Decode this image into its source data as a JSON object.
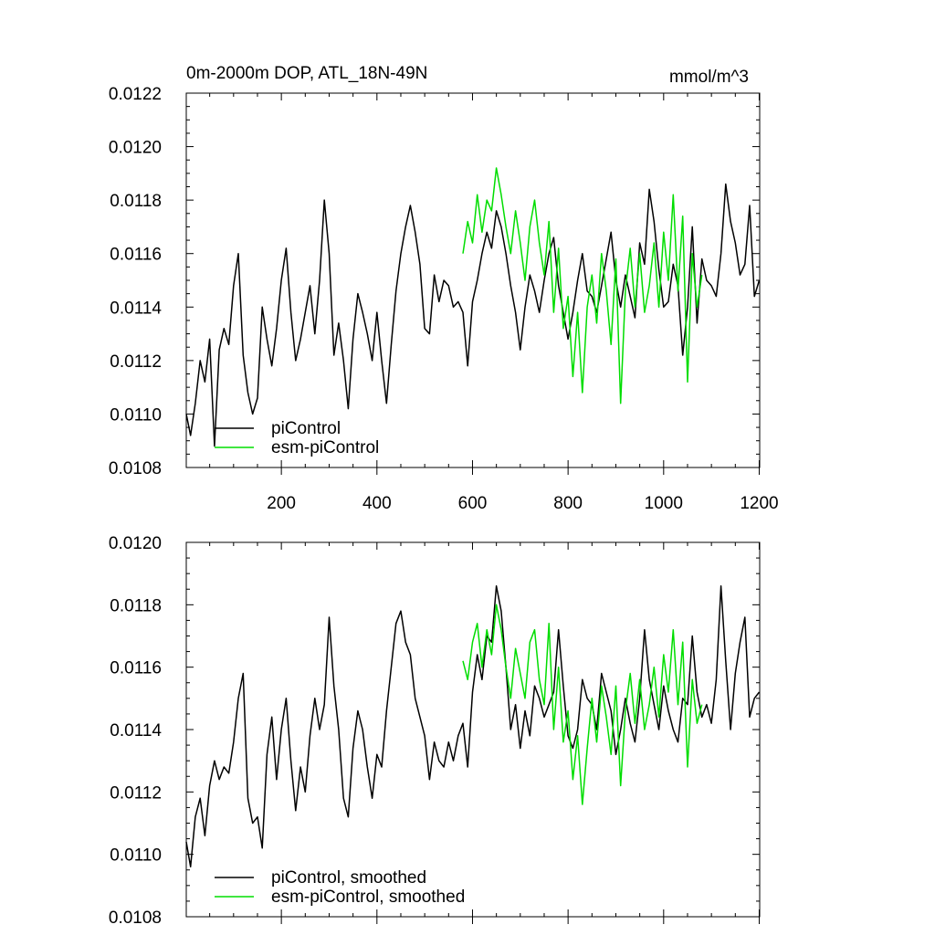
{
  "chart_data": [
    {
      "type": "line",
      "title": "0m-2000m DOP, ATL_18N-49N",
      "units": "mmol/m^3",
      "xlim": [
        1,
        1201
      ],
      "ylim": [
        0.0108,
        0.0122
      ],
      "x_ticks": [
        200,
        400,
        600,
        800,
        1000,
        1200
      ],
      "x_tick_labels": [
        "200",
        "400",
        "600",
        "800",
        "1000",
        "1200"
      ],
      "y_ticks": [
        0.0108,
        0.011,
        0.0112,
        0.0114,
        0.0116,
        0.0118,
        0.012,
        0.0122
      ],
      "y_tick_labels": [
        "0.0108",
        "0.0110",
        "0.0112",
        "0.0114",
        "0.0116",
        "0.0118",
        "0.0120",
        "0.0122"
      ],
      "legend": {
        "position": "bottom-left",
        "entries": [
          "piControl",
          "esm-piControl"
        ]
      },
      "series": [
        {
          "name": "piControl",
          "color": "#000000",
          "x": [
            1,
            10,
            20,
            30,
            40,
            50,
            60,
            70,
            80,
            90,
            100,
            110,
            120,
            130,
            140,
            150,
            160,
            170,
            180,
            190,
            200,
            210,
            220,
            230,
            240,
            250,
            260,
            270,
            280,
            290,
            300,
            310,
            320,
            330,
            340,
            350,
            360,
            370,
            380,
            390,
            400,
            410,
            420,
            430,
            440,
            450,
            460,
            470,
            480,
            490,
            500,
            510,
            520,
            530,
            540,
            550,
            560,
            570,
            580,
            590,
            600,
            610,
            620,
            630,
            640,
            650,
            660,
            670,
            680,
            690,
            700,
            710,
            720,
            730,
            740,
            750,
            760,
            770,
            780,
            790,
            800,
            810,
            820,
            830,
            840,
            850,
            860,
            870,
            880,
            890,
            900,
            910,
            920,
            930,
            940,
            950,
            960,
            970,
            980,
            990,
            1000,
            1010,
            1020,
            1030,
            1040,
            1050,
            1060,
            1070,
            1080,
            1090,
            1100,
            1110,
            1120,
            1130,
            1140,
            1150,
            1160,
            1170,
            1180,
            1190,
            1200
          ],
          "values": [
            0.011,
            0.01092,
            0.01104,
            0.0112,
            0.01112,
            0.01128,
            0.01088,
            0.01124,
            0.01132,
            0.01126,
            0.01148,
            0.0116,
            0.01122,
            0.01108,
            0.011,
            0.01106,
            0.0114,
            0.01128,
            0.01118,
            0.01132,
            0.0115,
            0.01162,
            0.01138,
            0.0112,
            0.01128,
            0.01138,
            0.01148,
            0.0113,
            0.0115,
            0.0118,
            0.0116,
            0.01122,
            0.01134,
            0.0112,
            0.01102,
            0.01128,
            0.01145,
            0.01138,
            0.0113,
            0.0112,
            0.01138,
            0.0112,
            0.01104,
            0.01126,
            0.01146,
            0.0116,
            0.0117,
            0.01178,
            0.01168,
            0.01156,
            0.01132,
            0.0113,
            0.01152,
            0.01142,
            0.0115,
            0.01148,
            0.0114,
            0.01142,
            0.01138,
            0.01118,
            0.01142,
            0.0115,
            0.0116,
            0.01168,
            0.01162,
            0.01176,
            0.0117,
            0.0116,
            0.01148,
            0.01138,
            0.01124,
            0.0114,
            0.01152,
            0.01146,
            0.01138,
            0.0115,
            0.0116,
            0.01166,
            0.01148,
            0.01138,
            0.01128,
            0.01138,
            0.0115,
            0.0116,
            0.01146,
            0.01144,
            0.01138,
            0.01148,
            0.01158,
            0.01168,
            0.0115,
            0.0114,
            0.01152,
            0.01144,
            0.01136,
            0.01164,
            0.01156,
            0.01184,
            0.01172,
            0.01154,
            0.0114,
            0.01142,
            0.01156,
            0.01148,
            0.01122,
            0.0114,
            0.0117,
            0.01134,
            0.01158,
            0.0115,
            0.01148,
            0.01144,
            0.0116,
            0.01186,
            0.01172,
            0.01164,
            0.01152,
            0.01156,
            0.01178,
            0.01144,
            0.0115
          ]
        },
        {
          "name": "esm-piControl",
          "color": "#00dd00",
          "x": [
            580,
            590,
            600,
            610,
            620,
            630,
            640,
            650,
            660,
            670,
            680,
            690,
            700,
            710,
            720,
            730,
            740,
            750,
            760,
            770,
            780,
            790,
            800,
            810,
            820,
            830,
            840,
            850,
            860,
            870,
            880,
            890,
            900,
            910,
            920,
            930,
            940,
            950,
            960,
            970,
            980,
            990,
            1000,
            1010,
            1020,
            1030,
            1040,
            1050,
            1060,
            1070,
            1080
          ],
          "values": [
            0.0116,
            0.01172,
            0.01164,
            0.01182,
            0.01168,
            0.0118,
            0.01176,
            0.01192,
            0.01182,
            0.0117,
            0.0116,
            0.01176,
            0.01164,
            0.0115,
            0.0117,
            0.0118,
            0.01164,
            0.01152,
            0.01172,
            0.01138,
            0.01162,
            0.01132,
            0.01144,
            0.01114,
            0.01138,
            0.01108,
            0.0114,
            0.01152,
            0.01134,
            0.0116,
            0.01146,
            0.01126,
            0.01158,
            0.01104,
            0.01146,
            0.01162,
            0.0114,
            0.0116,
            0.01138,
            0.01148,
            0.01164,
            0.0114,
            0.01168,
            0.0115,
            0.01182,
            0.01146,
            0.01174,
            0.01112,
            0.0116,
            0.0114,
            0.01152
          ]
        }
      ]
    },
    {
      "type": "line",
      "title": "",
      "xlim": [
        1,
        1201
      ],
      "ylim": [
        0.0108,
        0.012
      ],
      "x_ticks": [
        200,
        400,
        600,
        800,
        1000,
        1200
      ],
      "y_ticks": [
        0.0108,
        0.011,
        0.0112,
        0.0114,
        0.0116,
        0.0118,
        0.012
      ],
      "y_tick_labels": [
        "0.0108",
        "0.0110",
        "0.0112",
        "0.0114",
        "0.0116",
        "0.0118",
        "0.0120"
      ],
      "legend": {
        "position": "bottom-left",
        "entries": [
          "piControl, smoothed",
          "esm-piControl, smoothed"
        ]
      },
      "series": [
        {
          "name": "piControl, smoothed",
          "color": "#000000",
          "x": [
            1,
            10,
            20,
            30,
            40,
            50,
            60,
            70,
            80,
            90,
            100,
            110,
            120,
            130,
            140,
            150,
            160,
            170,
            180,
            190,
            200,
            210,
            220,
            230,
            240,
            250,
            260,
            270,
            280,
            290,
            300,
            310,
            320,
            330,
            340,
            350,
            360,
            370,
            380,
            390,
            400,
            410,
            420,
            430,
            440,
            450,
            460,
            470,
            480,
            490,
            500,
            510,
            520,
            530,
            540,
            550,
            560,
            570,
            580,
            590,
            600,
            610,
            620,
            630,
            640,
            650,
            660,
            670,
            680,
            690,
            700,
            710,
            720,
            730,
            740,
            750,
            760,
            770,
            780,
            790,
            800,
            810,
            820,
            830,
            840,
            850,
            860,
            870,
            880,
            890,
            900,
            910,
            920,
            930,
            940,
            950,
            960,
            970,
            980,
            990,
            1000,
            1010,
            1020,
            1030,
            1040,
            1050,
            1060,
            1070,
            1080,
            1090,
            1100,
            1110,
            1120,
            1130,
            1140,
            1150,
            1160,
            1170,
            1180,
            1190,
            1200
          ],
          "values": [
            0.01104,
            0.01096,
            0.01112,
            0.01118,
            0.01106,
            0.01122,
            0.0113,
            0.01124,
            0.01128,
            0.01126,
            0.01136,
            0.0115,
            0.01158,
            0.01118,
            0.0111,
            0.01112,
            0.01102,
            0.01132,
            0.01144,
            0.01124,
            0.0114,
            0.0115,
            0.0113,
            0.01114,
            0.01128,
            0.0112,
            0.01138,
            0.0115,
            0.0114,
            0.01148,
            0.01176,
            0.01154,
            0.0114,
            0.01118,
            0.01112,
            0.01134,
            0.01146,
            0.0114,
            0.01128,
            0.01118,
            0.01132,
            0.01128,
            0.01146,
            0.0116,
            0.01174,
            0.01178,
            0.01168,
            0.01164,
            0.0115,
            0.01144,
            0.01138,
            0.01124,
            0.01136,
            0.0113,
            0.01128,
            0.01136,
            0.0113,
            0.01138,
            0.01142,
            0.01128,
            0.01152,
            0.01164,
            0.01156,
            0.0117,
            0.01168,
            0.01186,
            0.01178,
            0.0116,
            0.0114,
            0.01148,
            0.01134,
            0.01146,
            0.01138,
            0.01154,
            0.0115,
            0.01144,
            0.01148,
            0.01152,
            0.01172,
            0.01154,
            0.01138,
            0.01134,
            0.0114,
            0.01156,
            0.0115,
            0.01148,
            0.0114,
            0.01158,
            0.01152,
            0.01146,
            0.01132,
            0.0114,
            0.0115,
            0.01142,
            0.01136,
            0.0115,
            0.01172,
            0.01156,
            0.01148,
            0.0114,
            0.01154,
            0.01146,
            0.0114,
            0.01136,
            0.0115,
            0.01148,
            0.0117,
            0.01152,
            0.01144,
            0.01148,
            0.01142,
            0.01156,
            0.01186,
            0.01162,
            0.0114,
            0.01158,
            0.01168,
            0.01176,
            0.01144,
            0.0115,
            0.01152
          ]
        },
        {
          "name": "esm-piControl, smoothed",
          "color": "#00dd00",
          "x": [
            580,
            590,
            600,
            610,
            620,
            630,
            640,
            650,
            660,
            670,
            680,
            690,
            700,
            710,
            720,
            730,
            740,
            750,
            760,
            770,
            780,
            790,
            800,
            810,
            820,
            830,
            840,
            850,
            860,
            870,
            880,
            890,
            900,
            910,
            920,
            930,
            940,
            950,
            960,
            970,
            980,
            990,
            1000,
            1010,
            1020,
            1030,
            1040,
            1050,
            1060,
            1070,
            1080
          ],
          "values": [
            0.01162,
            0.01156,
            0.01168,
            0.01174,
            0.0116,
            0.01172,
            0.01164,
            0.0118,
            0.01172,
            0.0116,
            0.0115,
            0.01166,
            0.01158,
            0.0115,
            0.01168,
            0.01172,
            0.01156,
            0.01148,
            0.01174,
            0.0114,
            0.0116,
            0.01136,
            0.01146,
            0.01124,
            0.01138,
            0.01116,
            0.01134,
            0.0115,
            0.01136,
            0.01154,
            0.01144,
            0.01132,
            0.01154,
            0.01122,
            0.01146,
            0.01158,
            0.01142,
            0.01156,
            0.0114,
            0.01148,
            0.0116,
            0.01144,
            0.01164,
            0.01152,
            0.01172,
            0.01148,
            0.01168,
            0.01128,
            0.01156,
            0.01142,
            0.01148
          ]
        }
      ]
    }
  ]
}
